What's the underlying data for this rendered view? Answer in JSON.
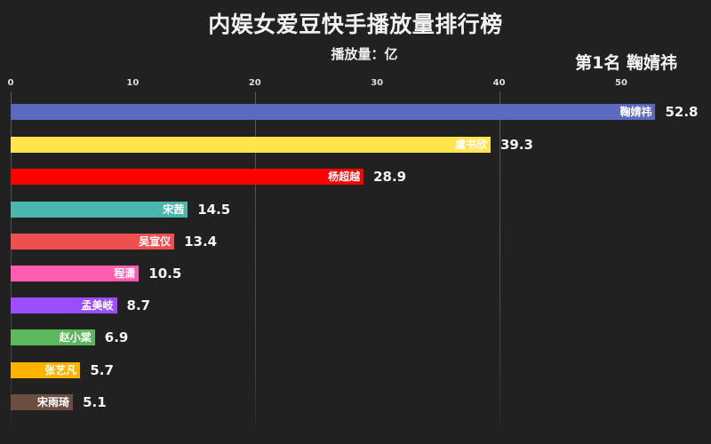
{
  "header": {
    "title": "内娱女爱豆快手播放量排行榜",
    "subtitle": "播放量：亿",
    "rank_label": "第1名 鞠婧祎"
  },
  "axis": {
    "ticks": [
      "0",
      "10",
      "20",
      "30",
      "40",
      "50"
    ]
  },
  "bars": [
    {
      "name": "鞠婧祎",
      "value": "52.8",
      "color": "#5b6abf"
    },
    {
      "name": "虞书欣",
      "value": "39.3",
      "color": "#ffe44d"
    },
    {
      "name": "杨超越",
      "value": "28.9",
      "color": "#ff0000"
    },
    {
      "name": "宋茜",
      "value": "14.5",
      "color": "#4db6ac"
    },
    {
      "name": "吴宣仪",
      "value": "13.4",
      "color": "#ef4f4f"
    },
    {
      "name": "程潇",
      "value": "10.5",
      "color": "#ff5cb0"
    },
    {
      "name": "孟美岐",
      "value": "8.7",
      "color": "#9c4dff"
    },
    {
      "name": "赵小棠",
      "value": "6.9",
      "color": "#5cb85c"
    },
    {
      "name": "张艺凡",
      "value": "5.7",
      "color": "#ffb300"
    },
    {
      "name": "宋雨琦",
      "value": "5.1",
      "color": "#6d4c41"
    }
  ],
  "chart_data": {
    "type": "bar",
    "orientation": "horizontal",
    "title": "内娱女爱豆快手播放量排行榜",
    "subtitle": "播放量：亿",
    "annotation": "第1名 鞠婧祎",
    "categories": [
      "鞠婧祎",
      "虞书欣",
      "杨超越",
      "宋茜",
      "吴宣仪",
      "程潇",
      "孟美岐",
      "赵小棠",
      "张艺凡",
      "宋雨琦"
    ],
    "values": [
      52.8,
      39.3,
      28.9,
      14.5,
      13.4,
      10.5,
      8.7,
      6.9,
      5.7,
      5.1
    ],
    "colors": [
      "#5b6abf",
      "#ffe44d",
      "#ff0000",
      "#4db6ac",
      "#ef4f4f",
      "#ff5cb0",
      "#9c4dff",
      "#5cb85c",
      "#ffb300",
      "#6d4c41"
    ],
    "xlabel": "",
    "ylabel": "",
    "xlim": [
      0,
      55
    ],
    "xticks": [
      0,
      10,
      20,
      30,
      40,
      50
    ],
    "grid": true,
    "legend": "none"
  }
}
